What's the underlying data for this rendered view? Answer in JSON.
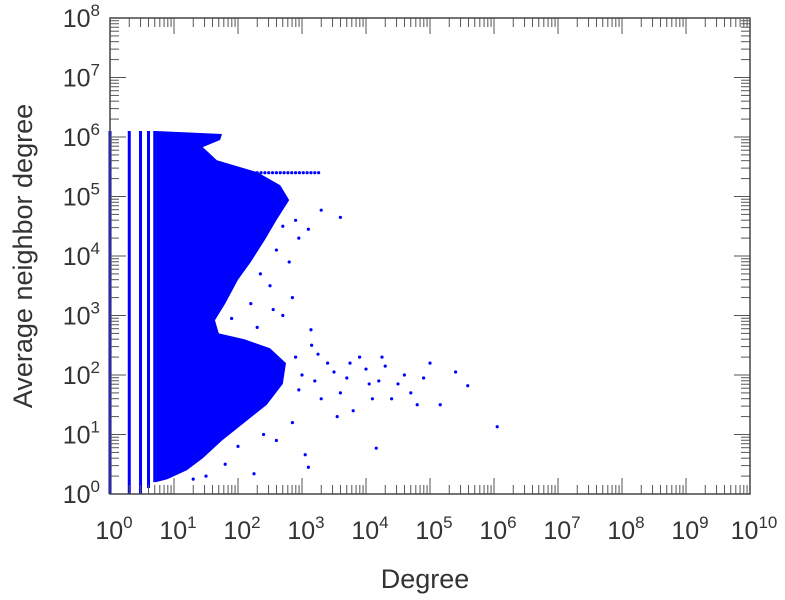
{
  "chart_data": {
    "type": "scatter",
    "title": "",
    "xlabel": "Degree",
    "ylabel": "Average neighbor degree",
    "xscale": "log",
    "yscale": "log",
    "xlim_log10": [
      0,
      10
    ],
    "ylim_log10": [
      0,
      8
    ],
    "x_tick_exponents": [
      0,
      1,
      2,
      3,
      4,
      5,
      6,
      7,
      8,
      9,
      10
    ],
    "y_tick_exponents": [
      0,
      1,
      2,
      3,
      4,
      5,
      6,
      7,
      8
    ],
    "tick_base": "10",
    "marker_color": "#0000ff",
    "grid": false,
    "dense_columns_log10": [
      {
        "x": 0,
        "y": [
          0,
          6.1
        ]
      },
      {
        "x": 0.301,
        "y": [
          0,
          6.1
        ]
      },
      {
        "x": 0.477,
        "y": [
          0,
          6.1
        ]
      },
      {
        "x": 0.602,
        "y": [
          0.1,
          6.1
        ]
      },
      {
        "x": 0.699,
        "y": [
          0.2,
          6.1
        ]
      }
    ],
    "dense_region_log10": [
      [
        0.72,
        6.1
      ],
      [
        1.75,
        6.05
      ],
      [
        1.72,
        5.95
      ],
      [
        1.45,
        5.83
      ],
      [
        1.67,
        5.61
      ],
      [
        2.3,
        5.41
      ],
      [
        2.66,
        5.19
      ],
      [
        2.8,
        4.94
      ],
      [
        2.6,
        4.6
      ],
      [
        2.42,
        4.27
      ],
      [
        2.2,
        3.9
      ],
      [
        2.0,
        3.6
      ],
      [
        1.8,
        3.2
      ],
      [
        1.64,
        2.92
      ],
      [
        1.7,
        2.7
      ],
      [
        2.1,
        2.6
      ],
      [
        2.5,
        2.45
      ],
      [
        2.75,
        2.2
      ],
      [
        2.7,
        1.85
      ],
      [
        2.45,
        1.5
      ],
      [
        2.1,
        1.2
      ],
      [
        1.75,
        0.9
      ],
      [
        1.45,
        0.6
      ],
      [
        1.2,
        0.4
      ],
      [
        0.9,
        0.25
      ],
      [
        0.72,
        0.2
      ]
    ],
    "saturation_line_log10": {
      "y": 5.4,
      "x": [
        2.3,
        3.3
      ]
    },
    "points_log10": [
      [
        3.3,
        4.77
      ],
      [
        3.6,
        4.65
      ],
      [
        2.9,
        4.6
      ],
      [
        3.1,
        4.45
      ],
      [
        2.7,
        4.5
      ],
      [
        2.95,
        4.3
      ],
      [
        2.6,
        4.1
      ],
      [
        2.5,
        3.5
      ],
      [
        2.2,
        3.2
      ],
      [
        2.8,
        3.9
      ],
      [
        2.35,
        3.7
      ],
      [
        1.9,
        2.95
      ],
      [
        2.3,
        2.8
      ],
      [
        3.14,
        2.76
      ],
      [
        2.9,
        2.3
      ],
      [
        3.0,
        2.0
      ],
      [
        3.2,
        1.9
      ],
      [
        3.4,
        2.2
      ],
      [
        3.6,
        1.7
      ],
      [
        3.9,
        2.3
      ],
      [
        4.0,
        2.1
      ],
      [
        4.2,
        1.9
      ],
      [
        4.4,
        1.6
      ],
      [
        4.6,
        2.0
      ],
      [
        3.8,
        1.4
      ],
      [
        4.1,
        1.6
      ],
      [
        4.7,
        1.7
      ],
      [
        5.0,
        2.2
      ],
      [
        4.8,
        1.5
      ],
      [
        5.16,
        1.5
      ],
      [
        5.4,
        2.05
      ],
      [
        5.59,
        1.82
      ],
      [
        6.05,
        1.13
      ],
      [
        4.16,
        0.77
      ],
      [
        3.05,
        0.66
      ],
      [
        3.1,
        0.45
      ],
      [
        2.25,
        0.34
      ],
      [
        2.0,
        0.8
      ],
      [
        1.8,
        0.5
      ],
      [
        1.5,
        0.3
      ],
      [
        1.3,
        0.25
      ],
      [
        3.3,
        1.6
      ],
      [
        3.5,
        2.05
      ],
      [
        3.7,
        1.95
      ],
      [
        4.3,
        2.15
      ],
      [
        4.5,
        1.85
      ],
      [
        4.9,
        1.95
      ],
      [
        3.25,
        2.35
      ],
      [
        2.95,
        1.75
      ],
      [
        3.55,
        1.3
      ],
      [
        2.85,
        1.2
      ],
      [
        2.6,
        0.9
      ],
      [
        2.4,
        1.0
      ],
      [
        4.05,
        1.85
      ],
      [
        3.75,
        2.2
      ],
      [
        4.25,
        2.3
      ],
      [
        3.15,
        2.5
      ],
      [
        2.85,
        3.3
      ],
      [
        2.7,
        3.0
      ],
      [
        2.55,
        3.1
      ]
    ]
  }
}
